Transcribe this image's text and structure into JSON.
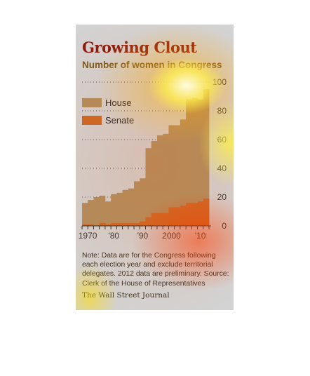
{
  "chart_data": {
    "type": "bar",
    "title": "Growing Clout",
    "subtitle": "Number of women in Congress",
    "ylim": [
      0,
      100
    ],
    "y_ticks": [
      0,
      20,
      40,
      60,
      80,
      100
    ],
    "x_ticks": [
      "1970",
      "'80",
      "'90",
      "2000",
      "'10"
    ],
    "legend_position": "top-left",
    "grid": true,
    "stacked": false,
    "categories": [
      "1970",
      "1972",
      "1974",
      "1976",
      "1978",
      "1980",
      "1982",
      "1984",
      "1986",
      "1988",
      "1990",
      "1992",
      "1994",
      "1996",
      "1998",
      "2000",
      "2002",
      "2004",
      "2006",
      "2008",
      "2010",
      "2012"
    ],
    "series": [
      {
        "name": "House",
        "color": "#b08d5c",
        "values": [
          16,
          18,
          20,
          21,
          17,
          22,
          23,
          25,
          26,
          31,
          33,
          54,
          59,
          63,
          64,
          70,
          70,
          74,
          88,
          89,
          88,
          95
        ]
      },
      {
        "name": "Senate",
        "color": "#cc6622",
        "values": [
          1,
          1,
          0,
          2,
          1,
          2,
          2,
          2,
          2,
          2,
          3,
          6,
          9,
          9,
          9,
          13,
          13,
          14,
          16,
          16,
          17,
          19
        ]
      }
    ]
  },
  "note": "Note: Data are for the Congress following each election year and exclude territorial delegates. 2012 data are preliminary. Source: Clerk of the House of Representatives",
  "credit": "The Wall Street Journal"
}
